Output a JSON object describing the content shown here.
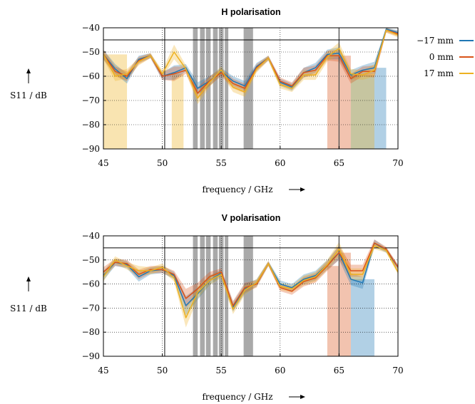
{
  "legend": {
    "items": [
      {
        "label": "−17 mm",
        "color": "#1f77b4"
      },
      {
        "label": "0 mm",
        "color": "#d95319"
      },
      {
        "label": "17 mm",
        "color": "#edb120"
      }
    ]
  },
  "chart_data": [
    {
      "type": "line",
      "title": "H polarisation",
      "xlabel": "frequency / GHz",
      "ylabel": "S11 / dB",
      "xlim": [
        45,
        70
      ],
      "ylim": [
        -90,
        -40
      ],
      "xticks": [
        "45",
        "50",
        "55",
        "60",
        "65",
        "70"
      ],
      "yticks": [
        "−40",
        "−50",
        "−60",
        "−70",
        "−80",
        "−90"
      ],
      "grid": true,
      "threshold_dB": -45,
      "marker_lines_GHz": [
        50.2,
        65
      ],
      "shaded_bands_GHz": [
        [
          52.6,
          53.0
        ],
        [
          53.2,
          53.6
        ],
        [
          53.7,
          54.1
        ],
        [
          54.3,
          54.7
        ],
        [
          54.8,
          55.2
        ],
        [
          55.3,
          55.6
        ],
        [
          56.9,
          57.7
        ]
      ],
      "x": [
        45,
        46,
        47,
        48,
        49,
        50,
        51,
        52,
        53,
        54,
        55,
        56,
        57,
        58,
        59,
        60,
        61,
        62,
        63,
        64,
        65,
        66,
        67,
        68,
        69,
        70
      ],
      "series": [
        {
          "name": "−17 mm",
          "color": "#1f77b4",
          "y": [
            -51,
            -57,
            -61,
            -53,
            -51.5,
            -60,
            -58.5,
            -56.5,
            -65,
            -62,
            -58,
            -62,
            -64,
            -56,
            -52.5,
            -62.5,
            -64.5,
            -58.5,
            -56.5,
            -51,
            -50.5,
            -59.5,
            -57.5,
            -56.5,
            -40.5,
            -42
          ]
        },
        {
          "name": "0 mm",
          "color": "#d95319",
          "y": [
            -51,
            -58,
            -60,
            -53.5,
            -51.5,
            -60,
            -59,
            -57.5,
            -67,
            -62,
            -58.5,
            -63,
            -65,
            -56.5,
            -52.5,
            -62,
            -64,
            -58.5,
            -57.5,
            -51.5,
            -51.5,
            -61,
            -58,
            -58,
            -41,
            -42.5
          ]
        },
        {
          "name": "17 mm",
          "color": "#edb120",
          "y": [
            -51,
            -60,
            -59,
            -54,
            -51.5,
            -59,
            -50,
            -57,
            -69,
            -62.5,
            -57.5,
            -64.5,
            -66.5,
            -57,
            -52.5,
            -63.5,
            -65,
            -59.5,
            -59.5,
            -52,
            -48.5,
            -59,
            -59.5,
            -57.5,
            -41,
            -43
          ]
        }
      ],
      "band_spread": [
        2,
        2,
        2,
        1.5,
        1,
        1.5,
        3,
        1.5,
        2.5,
        2,
        1.5,
        2,
        2,
        1.5,
        1,
        1.5,
        1.5,
        2,
        2,
        2,
        2.5,
        2,
        2,
        2.5,
        1,
        1
      ],
      "dropouts": [
        {
          "series": 2,
          "from": 45,
          "to": 47,
          "floor": -90
        },
        {
          "series": 2,
          "from": 50.8,
          "to": 51.8,
          "floor": -90
        },
        {
          "series": 1,
          "from": 64,
          "to": 65,
          "floor": -90
        },
        {
          "series": 1,
          "from": 65,
          "to": 66,
          "floor": -90
        },
        {
          "series": 0,
          "from": 66,
          "to": 68,
          "floor": -90
        },
        {
          "series": 2,
          "from": 66,
          "to": 68,
          "floor": -90
        },
        {
          "series": 0,
          "from": 68,
          "to": 69,
          "floor": -90
        }
      ]
    },
    {
      "type": "line",
      "title": "V polarisation",
      "xlabel": "frequency / GHz",
      "ylabel": "S11 / dB",
      "xlim": [
        45,
        70
      ],
      "ylim": [
        -90,
        -40
      ],
      "xticks": [
        "45",
        "50",
        "55",
        "60",
        "65",
        "70"
      ],
      "yticks": [
        "−40",
        "−50",
        "−60",
        "−70",
        "−80",
        "−90"
      ],
      "grid": true,
      "threshold_dB": -45,
      "marker_lines_GHz": [
        50.2,
        65
      ],
      "shaded_bands_GHz": [
        [
          52.6,
          53.0
        ],
        [
          53.2,
          53.6
        ],
        [
          53.7,
          54.1
        ],
        [
          54.3,
          54.7
        ],
        [
          54.8,
          55.2
        ],
        [
          55.3,
          55.6
        ],
        [
          56.9,
          57.7
        ]
      ],
      "x": [
        45,
        46,
        47,
        48,
        49,
        50,
        51,
        52,
        53,
        54,
        55,
        56,
        57,
        58,
        59,
        60,
        61,
        62,
        63,
        64,
        65,
        66,
        67,
        68,
        69,
        70
      ],
      "series": [
        {
          "name": "−17 mm",
          "color": "#1f77b4",
          "y": [
            -56.5,
            -51,
            -52,
            -57,
            -54.5,
            -54,
            -56.5,
            -69,
            -64,
            -58.5,
            -55.5,
            -69.5,
            -62,
            -59.5,
            -51.5,
            -60,
            -61.5,
            -58,
            -56.5,
            -52,
            -47,
            -58,
            -59.5,
            -43,
            -46,
            -53
          ]
        },
        {
          "name": "0 mm",
          "color": "#d95319",
          "y": [
            -55,
            -51,
            -51.5,
            -56,
            -54,
            -54,
            -56,
            -66,
            -62,
            -57,
            -55,
            -69,
            -61.5,
            -60,
            -51.5,
            -61.5,
            -63,
            -59,
            -57.5,
            -52.5,
            -47,
            -54.5,
            -54.5,
            -43,
            -45.5,
            -53
          ]
        },
        {
          "name": "17 mm",
          "color": "#edb120",
          "y": [
            -57,
            -50,
            -52.5,
            -54.5,
            -54.5,
            -53,
            -57.5,
            -74,
            -63.5,
            -58.5,
            -56,
            -70.5,
            -62.5,
            -59.5,
            -51.5,
            -61,
            -62,
            -58.5,
            -57,
            -52,
            -45.5,
            -56,
            -56,
            -44,
            -46,
            -55
          ]
        }
      ],
      "band_spread": [
        2,
        1.5,
        1.5,
        2,
        1.5,
        1.5,
        1.5,
        4,
        2.5,
        2,
        1.5,
        2,
        2,
        1.5,
        1,
        1.5,
        1.5,
        2,
        2,
        2,
        3,
        2.5,
        2.5,
        1.5,
        1,
        1
      ],
      "dropouts": [
        {
          "series": 1,
          "from": 64,
          "to": 65,
          "floor": -90
        },
        {
          "series": 1,
          "from": 65,
          "to": 66,
          "floor": -90
        },
        {
          "series": 0,
          "from": 66,
          "to": 68,
          "floor": -90
        }
      ]
    }
  ]
}
